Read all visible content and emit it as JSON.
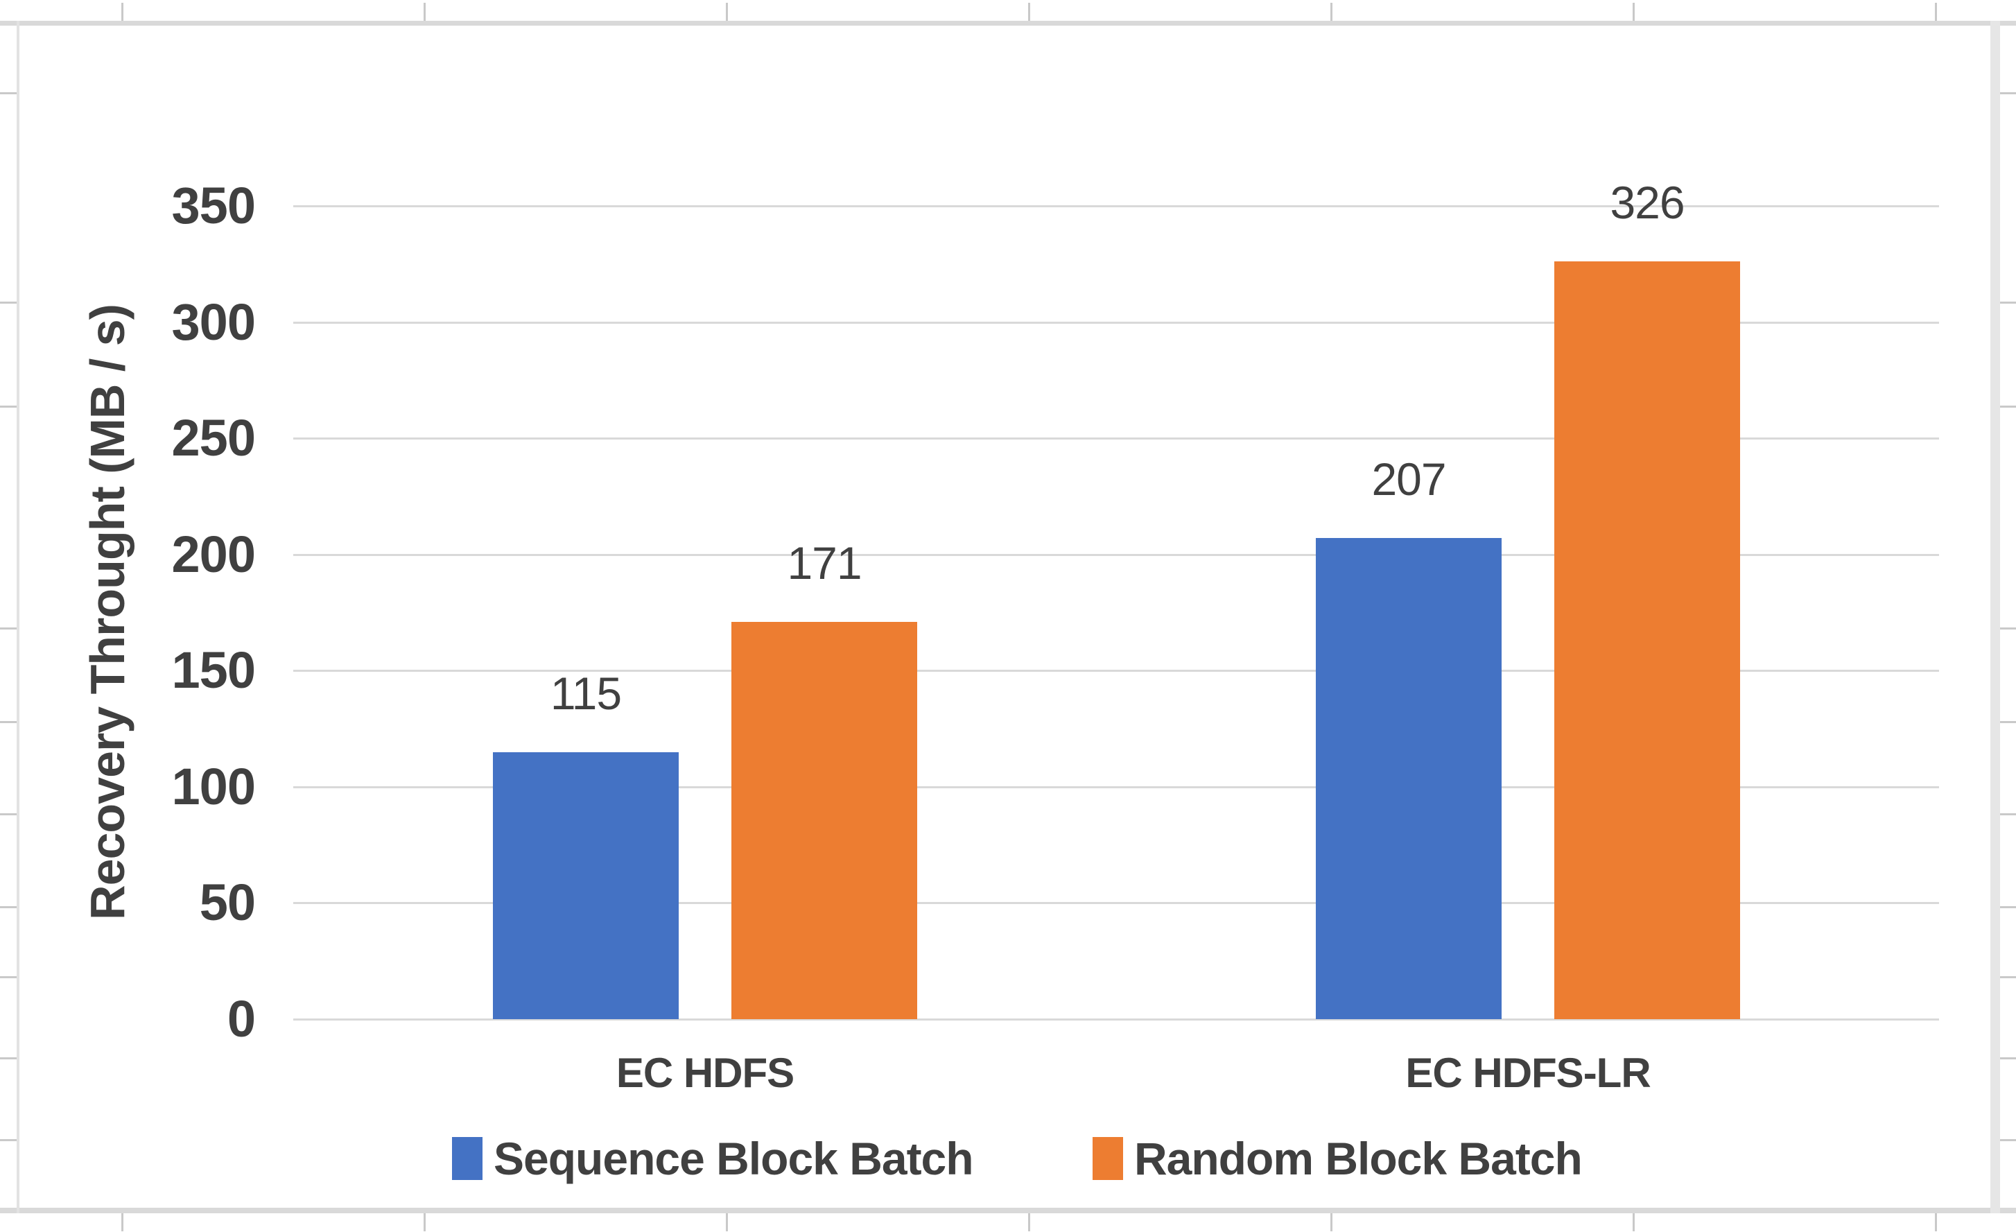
{
  "chart_data": {
    "type": "bar",
    "title": "",
    "categories": [
      "EC HDFS",
      "EC HDFS-LR"
    ],
    "series": [
      {
        "name": "Sequence Block Batch",
        "color": "#4472C4",
        "values": [
          115,
          207
        ]
      },
      {
        "name": "Random Block Batch",
        "color": "#ED7D31",
        "values": [
          171,
          326
        ]
      }
    ],
    "data_labels": [
      [
        115,
        207
      ],
      [
        171,
        326
      ]
    ],
    "xlabel": "",
    "ylabel": "Recovery Throught (MB / s)",
    "ylim": [
      0,
      350
    ],
    "yticks": [
      0,
      50,
      100,
      150,
      200,
      250,
      300,
      350
    ],
    "grid": true,
    "legend_position": "bottom",
    "style": {
      "text_color": "#404040",
      "gridline_color": "#D9D9D9",
      "frame_color": "#D9D9D9",
      "background": "#FFFFFF"
    }
  }
}
